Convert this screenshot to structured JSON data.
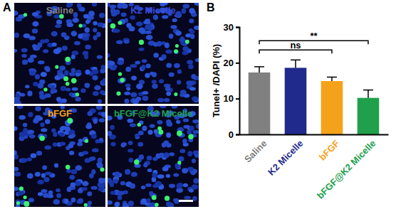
{
  "panel_a": {
    "label": "A",
    "images": [
      "Saline",
      "K2 Micelle",
      "bFGF",
      "bFGF@K2 Micelle"
    ]
  },
  "chart_data": {
    "type": "bar",
    "panel_label": "B",
    "y_label": "Tunel+ /DAPI (%)",
    "categories": [
      "Saline",
      "K2 Micelle",
      "bFGF",
      "bFGF@K2 Micelle"
    ],
    "values": [
      17.3,
      18.6,
      14.9,
      10.2
    ],
    "errors": [
      1.6,
      2.2,
      1.1,
      2.2
    ],
    "colors": [
      "#808080",
      "#1f2a8c",
      "#f5a21b",
      "#20a04b"
    ],
    "ylim": [
      0,
      30
    ],
    "yticks": [
      0,
      10,
      20,
      30
    ],
    "significance": [
      {
        "from": "Saline",
        "to": "bFGF",
        "label": "ns"
      },
      {
        "from": "Saline",
        "to": "bFGF@K2 Micelle",
        "label": "**"
      }
    ]
  }
}
